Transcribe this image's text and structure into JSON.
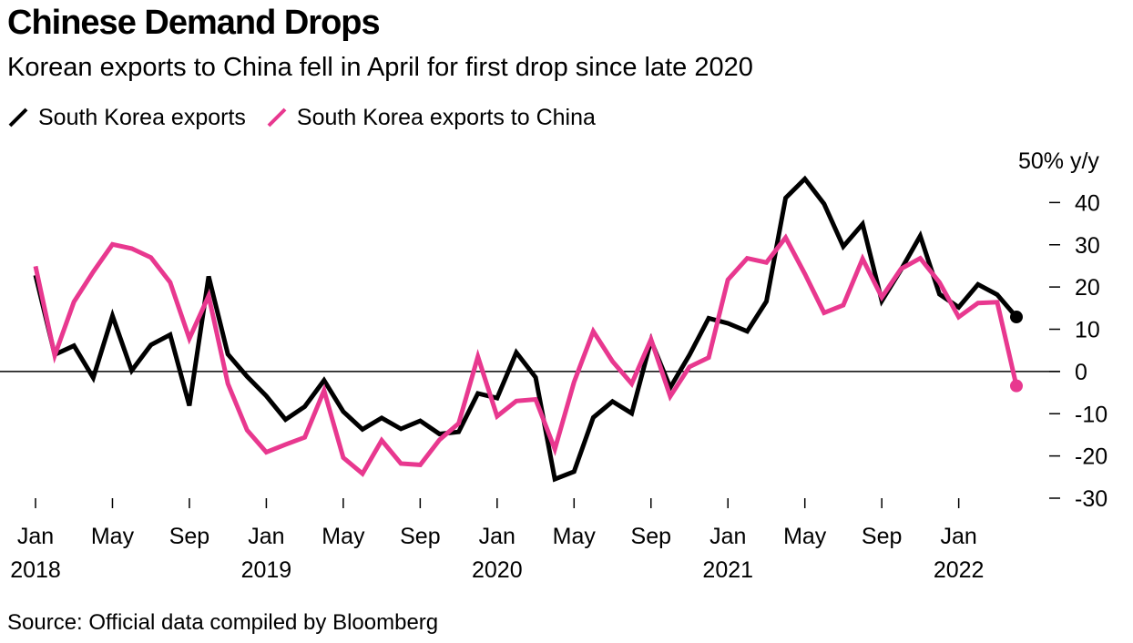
{
  "title": "Chinese Demand Drops",
  "subtitle": "Korean exports to China fell in April for first drop since late 2020",
  "source": "Source: Official data compiled by Bloomberg",
  "colors": {
    "exports": "#000000",
    "china": "#e8388f",
    "zero_line": "#000000"
  },
  "chart_data": {
    "type": "line",
    "ylabel": "% y/y",
    "ylim": [
      -30,
      50
    ],
    "y_ticks": [
      "50",
      "40",
      "30",
      "20",
      "10",
      "0",
      "-10",
      "-20",
      "-30"
    ],
    "x_tick_labels": [
      {
        "month": "Jan",
        "year": "2018"
      },
      {
        "month": "May",
        "year": ""
      },
      {
        "month": "Sep",
        "year": ""
      },
      {
        "month": "Jan",
        "year": "2019"
      },
      {
        "month": "May",
        "year": ""
      },
      {
        "month": "Sep",
        "year": ""
      },
      {
        "month": "Jan",
        "year": "2020"
      },
      {
        "month": "May",
        "year": ""
      },
      {
        "month": "Sep",
        "year": ""
      },
      {
        "month": "Jan",
        "year": "2021"
      },
      {
        "month": "May",
        "year": ""
      },
      {
        "month": "Sep",
        "year": ""
      },
      {
        "month": "Jan",
        "year": "2022"
      }
    ],
    "x_start": "2018-01",
    "x_end": "2022-04",
    "series": [
      {
        "name": "South Korea exports",
        "color": "#000000",
        "values": [
          22.8,
          4.0,
          6.1,
          -1.5,
          13.2,
          0.2,
          6.3,
          8.7,
          -8.1,
          22.5,
          4.1,
          -1.2,
          -5.8,
          -11.4,
          -8.3,
          -2.1,
          -9.5,
          -13.7,
          -11.0,
          -13.6,
          -11.7,
          -14.8,
          -14.3,
          -5.2,
          -6.3,
          4.5,
          -1.4,
          -25.5,
          -23.7,
          -10.9,
          -7.1,
          -9.9,
          7.3,
          -3.8,
          3.9,
          12.6,
          11.4,
          9.5,
          16.6,
          41.1,
          45.6,
          39.7,
          29.6,
          34.9,
          16.7,
          24.1,
          32.1,
          18.3,
          15.2,
          20.6,
          18.2,
          12.9
        ],
        "end_marker": true
      },
      {
        "name": "South Korea exports to China",
        "color": "#e8388f",
        "values": [
          24.9,
          3.8,
          16.5,
          23.6,
          30.1,
          29.1,
          27.0,
          21.1,
          7.8,
          17.9,
          -2.9,
          -13.9,
          -19.1,
          -17.3,
          -15.6,
          -4.5,
          -20.4,
          -24.2,
          -16.3,
          -21.8,
          -22.1,
          -16.2,
          -12.3,
          3.5,
          -10.6,
          -7.0,
          -6.6,
          -18.4,
          -2.5,
          9.5,
          2.4,
          -2.9,
          7.6,
          -5.9,
          1.1,
          3.3,
          21.7,
          26.8,
          25.8,
          31.7,
          23.1,
          13.9,
          15.7,
          26.7,
          17.6,
          24.3,
          26.8,
          21.1,
          12.9,
          16.2,
          16.4,
          -3.4
        ],
        "end_marker": true
      }
    ],
    "grid": false,
    "legend_position": "top-left"
  }
}
